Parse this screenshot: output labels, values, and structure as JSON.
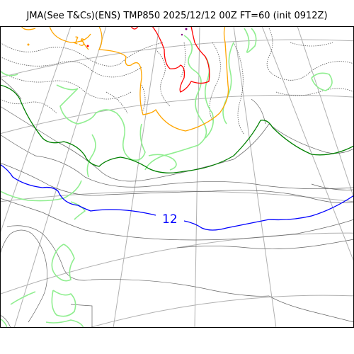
{
  "map": {
    "title": "JMA(See T&Cs)(ENS) TMP850 2025/12/12 00Z FT=60 (init 0912Z)",
    "contour_labels": [
      {
        "text": "12",
        "color": "#0000ff"
      },
      {
        "text": "15",
        "color": "#ffa500"
      }
    ],
    "colors": {
      "coast": "#666666",
      "graticule": "#b0b0b0",
      "blue_isotherm": "#0000ff",
      "green_isotherm": "#008000",
      "orange_isotherm": "#ffa500",
      "red_isotherm": "#ff0000",
      "light_green_contours": "#90ee90",
      "dotted_contours": "#555555",
      "frame": "#000000"
    }
  }
}
